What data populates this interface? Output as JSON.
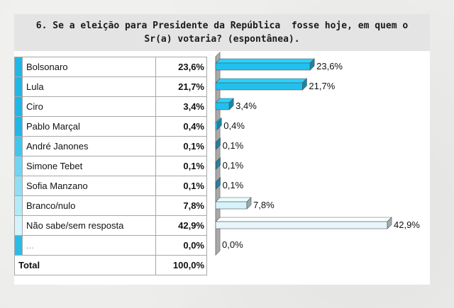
{
  "title": "6. Se a eleição para Presidente da República  fosse hoje, em quem o Sr(a) votaria? (espontânea).",
  "rows": [
    {
      "name": "Bolsonaro",
      "pct": "23,6%"
    },
    {
      "name": "Lula",
      "pct": "21,7%"
    },
    {
      "name": "Ciro",
      "pct": "3,4%"
    },
    {
      "name": "Pablo Marçal",
      "pct": "0,4%"
    },
    {
      "name": "André Janones",
      "pct": "0,1%"
    },
    {
      "name": "Simone Tebet",
      "pct": "0,1%"
    },
    {
      "name": "Sofia Manzano",
      "pct": "0,1%"
    },
    {
      "name": "Branco/nulo",
      "pct": "7,8%"
    },
    {
      "name": "Não sabe/sem resposta",
      "pct": "42,9%"
    },
    {
      "name": "...",
      "pct": "0,0%"
    }
  ],
  "total": {
    "name": "Total",
    "pct": "100,0%"
  },
  "colors": {
    "stripes": [
      "#1fb7e8",
      "#1fb7e8",
      "#1fb7e8",
      "#1fb7e8",
      "#3fc6ee",
      "#6fd5f3",
      "#8fdef5",
      "#b3eaf8",
      "#d5f3fb",
      "#2bbbe9"
    ],
    "bars": [
      "#22c0ee",
      "#22c0ee",
      "#22c0ee",
      "#22c0ee",
      "#22c0ee",
      "#22c0ee",
      "#22c0ee",
      "#d6f2fa",
      "#e6f6fb",
      "#e6f6fb"
    ],
    "axis": "#8a8a8a"
  },
  "chart_data": {
    "type": "bar",
    "orientation": "horizontal",
    "categories": [
      "Bolsonaro",
      "Lula",
      "Ciro",
      "Pablo Marçal",
      "André Janones",
      "Simone Tebet",
      "Sofia Manzano",
      "Branco/nulo",
      "Não sabe/sem resposta",
      "..."
    ],
    "values": [
      23.6,
      21.7,
      3.4,
      0.4,
      0.1,
      0.1,
      0.1,
      7.8,
      42.9,
      0.0
    ],
    "data_labels": [
      "23,6%",
      "21,7%",
      "3,4%",
      "0,4%",
      "0,1%",
      "0,1%",
      "0,1%",
      "7,8%",
      "42,9%",
      "0,0%"
    ],
    "xlim": [
      0,
      42.9
    ]
  }
}
